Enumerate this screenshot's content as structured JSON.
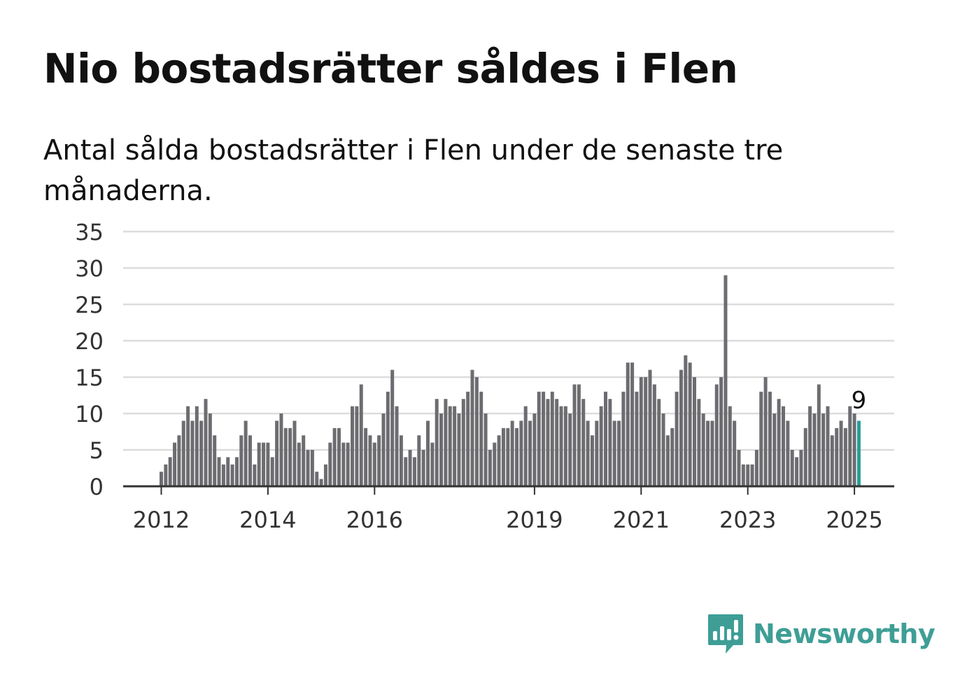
{
  "title": "Nio bostadsrätter såldes i Flen",
  "subtitle": "Antal sålda bostadsrätter i Flen under de senaste tre månaderna.",
  "brand": {
    "name": "Newsworthy",
    "icon": "bar-chart-bubble-icon",
    "color": "#3e9e96"
  },
  "chart_data": {
    "type": "bar",
    "title": "Nio bostadsrätter såldes i Flen",
    "subtitle": "Antal sålda bostadsrätter i Flen under de senaste tre månaderna.",
    "xlabel": "",
    "ylabel": "",
    "ylim": [
      0,
      35
    ],
    "yticks": [
      0,
      5,
      10,
      15,
      20,
      25,
      30,
      35
    ],
    "grid": true,
    "bar_color": "#6d6c70",
    "highlight_color": "#2a9d96",
    "x_tick_labels": [
      {
        "label": "2012",
        "index": 0
      },
      {
        "label": "2014",
        "index": 24
      },
      {
        "label": "2016",
        "index": 48
      },
      {
        "label": "2019",
        "index": 84
      },
      {
        "label": "2021",
        "index": 108
      },
      {
        "label": "2023",
        "index": 132
      },
      {
        "label": "2025",
        "index": 156
      }
    ],
    "highlight_label": "9",
    "values": [
      2,
      3,
      4,
      6,
      7,
      9,
      11,
      9,
      11,
      9,
      12,
      10,
      7,
      4,
      3,
      4,
      3,
      4,
      7,
      9,
      7,
      3,
      6,
      6,
      6,
      4,
      9,
      10,
      8,
      8,
      9,
      6,
      7,
      5,
      5,
      2,
      1,
      3,
      6,
      8,
      8,
      6,
      6,
      11,
      11,
      14,
      8,
      7,
      6,
      7,
      10,
      13,
      16,
      11,
      7,
      4,
      5,
      4,
      7,
      5,
      9,
      6,
      12,
      10,
      12,
      11,
      11,
      10,
      12,
      13,
      16,
      15,
      13,
      10,
      5,
      6,
      7,
      8,
      8,
      9,
      8,
      9,
      11,
      9,
      10,
      13,
      13,
      12,
      13,
      12,
      11,
      11,
      10,
      14,
      14,
      12,
      9,
      7,
      9,
      11,
      13,
      12,
      9,
      9,
      13,
      17,
      17,
      13,
      15,
      15,
      16,
      14,
      12,
      10,
      7,
      8,
      13,
      16,
      18,
      17,
      15,
      12,
      10,
      9,
      9,
      14,
      15,
      29,
      11,
      9,
      5,
      3,
      3,
      3,
      5,
      13,
      15,
      13,
      10,
      12,
      11,
      9,
      5,
      4,
      5,
      8,
      11,
      10,
      14,
      10,
      11,
      7,
      8,
      9,
      8,
      11,
      10,
      9
    ]
  }
}
